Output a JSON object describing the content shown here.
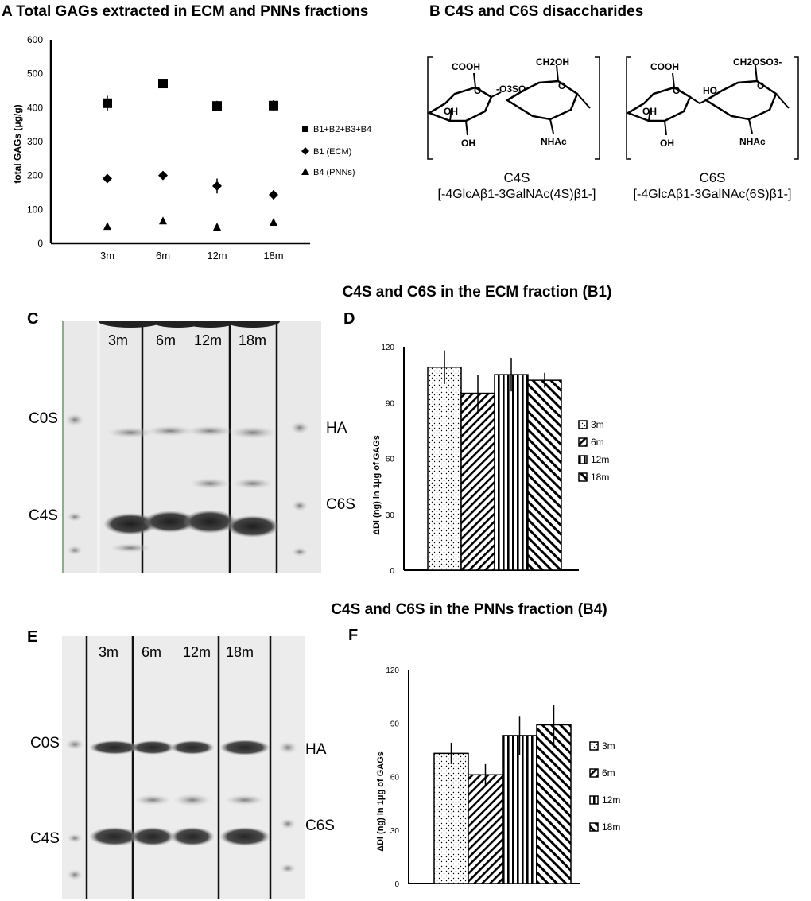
{
  "panel_a": {
    "title": "A Total GAGs extracted in ECM and PNNs fractions"
  },
  "panel_b": {
    "title": "B C4S and C6S disaccharides",
    "structures": [
      {
        "name": "C4S",
        "sequence": "[-4GlcAβ1-3GalNAc(4S)β1-]",
        "groups": {
          "cooh": "COOH",
          "ch2": "CH2OH",
          "sulfate": "-O3SO",
          "oh1": "OH",
          "oh2": "OH",
          "nhac": "NHAc",
          "ring_o": "O"
        }
      },
      {
        "name": "C6S",
        "sequence": "[-4GlcAβ1-3GalNAc(6S)β1-]",
        "groups": {
          "cooh": "COOH",
          "ch2": "CH2OSO3-",
          "sulfate": "HO",
          "oh1": "OH",
          "oh2": "OH",
          "nhac": "NHAc",
          "ring_o": "O"
        }
      }
    ]
  },
  "section_ecm": {
    "title": "C4S and C6S in the ECM fraction (B1)"
  },
  "section_pnn": {
    "title": "C4S and C6S in the PNNs fraction (B4)"
  },
  "gel_c": {
    "letter": "C",
    "lanes": [
      "3m",
      "6m",
      "12m",
      "18m"
    ],
    "left_labels": [
      "C0S",
      "C4S"
    ],
    "right_labels": [
      "HA",
      "C6S"
    ]
  },
  "gel_e": {
    "letter": "E",
    "lanes": [
      "3m",
      "6m",
      "12m",
      "18m"
    ],
    "left_labels": [
      "C0S",
      "C4S"
    ],
    "right_labels": [
      "HA",
      "C6S"
    ]
  },
  "chart_data": [
    {
      "id": "A",
      "type": "scatter",
      "title": "",
      "xlabel": "",
      "ylabel": "total GAGs (μg/g)",
      "categories": [
        "3m",
        "6m",
        "12m",
        "18m"
      ],
      "ylim": [
        0,
        600
      ],
      "yticks": [
        0,
        100,
        200,
        300,
        400,
        500,
        600
      ],
      "legend_position": "right",
      "series": [
        {
          "name": "B1+B2+B3+B4",
          "marker": "square",
          "values": [
            413,
            471,
            405,
            406
          ],
          "errors": [
            22,
            10,
            15,
            16
          ]
        },
        {
          "name": "B1 (ECM)",
          "marker": "diamond",
          "values": [
            191,
            200,
            169,
            143
          ],
          "errors": [
            6,
            7,
            22,
            14
          ]
        },
        {
          "name": "B4 (PNNs)",
          "marker": "triangle",
          "values": [
            49,
            65,
            47,
            61
          ],
          "errors": [
            3,
            4,
            3,
            4
          ]
        }
      ]
    },
    {
      "id": "D",
      "letter": "D",
      "type": "bar",
      "title": "",
      "xlabel": "",
      "ylabel": "ΔDi (ng) in 1μg of GAGs",
      "categories": [
        "3m",
        "6m",
        "12m",
        "18m"
      ],
      "ylim": [
        0,
        120
      ],
      "yticks": [
        0,
        30,
        60,
        90,
        120
      ],
      "legend_position": "right",
      "values": [
        109,
        95,
        105,
        102
      ],
      "errors": [
        9,
        10,
        9,
        4
      ]
    },
    {
      "id": "F",
      "letter": "F",
      "type": "bar",
      "title": "",
      "xlabel": "",
      "ylabel": "ΔDi (ng) in 1μg of GAGs",
      "categories": [
        "3m",
        "6m",
        "12m",
        "18m"
      ],
      "ylim": [
        0,
        120
      ],
      "yticks": [
        0,
        30,
        60,
        90,
        120
      ],
      "legend_position": "right",
      "values": [
        73,
        61,
        83,
        89
      ],
      "errors": [
        6,
        6,
        11,
        11
      ]
    }
  ]
}
